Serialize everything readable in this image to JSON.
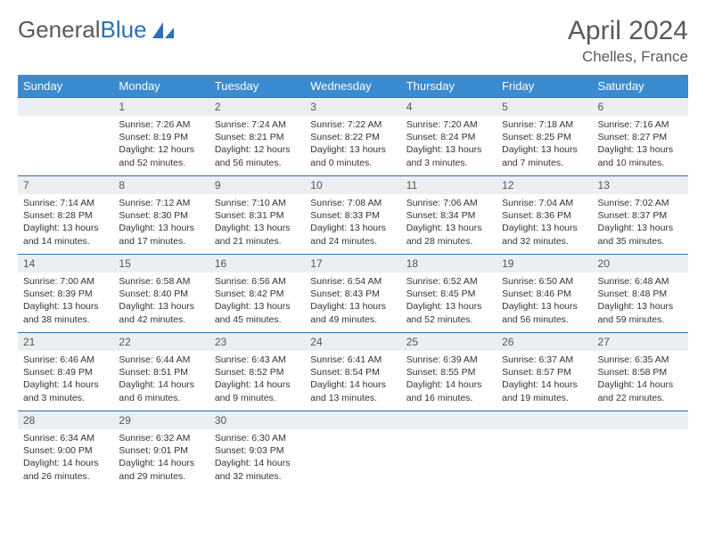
{
  "logo": {
    "text_a": "General",
    "text_b": "Blue"
  },
  "title": "April 2024",
  "location": "Chelles, France",
  "colors": {
    "header_bg": "#3b8bd0",
    "border": "#2e6fb7",
    "daynum_bg": "#eceff1",
    "text": "#333333",
    "muted": "#5a5a5a"
  },
  "weekdays": [
    "Sunday",
    "Monday",
    "Tuesday",
    "Wednesday",
    "Thursday",
    "Friday",
    "Saturday"
  ],
  "weeks": [
    [
      null,
      {
        "n": "1",
        "sr": "Sunrise: 7:26 AM",
        "ss": "Sunset: 8:19 PM",
        "dl": "Daylight: 12 hours and 52 minutes."
      },
      {
        "n": "2",
        "sr": "Sunrise: 7:24 AM",
        "ss": "Sunset: 8:21 PM",
        "dl": "Daylight: 12 hours and 56 minutes."
      },
      {
        "n": "3",
        "sr": "Sunrise: 7:22 AM",
        "ss": "Sunset: 8:22 PM",
        "dl": "Daylight: 13 hours and 0 minutes."
      },
      {
        "n": "4",
        "sr": "Sunrise: 7:20 AM",
        "ss": "Sunset: 8:24 PM",
        "dl": "Daylight: 13 hours and 3 minutes."
      },
      {
        "n": "5",
        "sr": "Sunrise: 7:18 AM",
        "ss": "Sunset: 8:25 PM",
        "dl": "Daylight: 13 hours and 7 minutes."
      },
      {
        "n": "6",
        "sr": "Sunrise: 7:16 AM",
        "ss": "Sunset: 8:27 PM",
        "dl": "Daylight: 13 hours and 10 minutes."
      }
    ],
    [
      {
        "n": "7",
        "sr": "Sunrise: 7:14 AM",
        "ss": "Sunset: 8:28 PM",
        "dl": "Daylight: 13 hours and 14 minutes."
      },
      {
        "n": "8",
        "sr": "Sunrise: 7:12 AM",
        "ss": "Sunset: 8:30 PM",
        "dl": "Daylight: 13 hours and 17 minutes."
      },
      {
        "n": "9",
        "sr": "Sunrise: 7:10 AM",
        "ss": "Sunset: 8:31 PM",
        "dl": "Daylight: 13 hours and 21 minutes."
      },
      {
        "n": "10",
        "sr": "Sunrise: 7:08 AM",
        "ss": "Sunset: 8:33 PM",
        "dl": "Daylight: 13 hours and 24 minutes."
      },
      {
        "n": "11",
        "sr": "Sunrise: 7:06 AM",
        "ss": "Sunset: 8:34 PM",
        "dl": "Daylight: 13 hours and 28 minutes."
      },
      {
        "n": "12",
        "sr": "Sunrise: 7:04 AM",
        "ss": "Sunset: 8:36 PM",
        "dl": "Daylight: 13 hours and 32 minutes."
      },
      {
        "n": "13",
        "sr": "Sunrise: 7:02 AM",
        "ss": "Sunset: 8:37 PM",
        "dl": "Daylight: 13 hours and 35 minutes."
      }
    ],
    [
      {
        "n": "14",
        "sr": "Sunrise: 7:00 AM",
        "ss": "Sunset: 8:39 PM",
        "dl": "Daylight: 13 hours and 38 minutes."
      },
      {
        "n": "15",
        "sr": "Sunrise: 6:58 AM",
        "ss": "Sunset: 8:40 PM",
        "dl": "Daylight: 13 hours and 42 minutes."
      },
      {
        "n": "16",
        "sr": "Sunrise: 6:56 AM",
        "ss": "Sunset: 8:42 PM",
        "dl": "Daylight: 13 hours and 45 minutes."
      },
      {
        "n": "17",
        "sr": "Sunrise: 6:54 AM",
        "ss": "Sunset: 8:43 PM",
        "dl": "Daylight: 13 hours and 49 minutes."
      },
      {
        "n": "18",
        "sr": "Sunrise: 6:52 AM",
        "ss": "Sunset: 8:45 PM",
        "dl": "Daylight: 13 hours and 52 minutes."
      },
      {
        "n": "19",
        "sr": "Sunrise: 6:50 AM",
        "ss": "Sunset: 8:46 PM",
        "dl": "Daylight: 13 hours and 56 minutes."
      },
      {
        "n": "20",
        "sr": "Sunrise: 6:48 AM",
        "ss": "Sunset: 8:48 PM",
        "dl": "Daylight: 13 hours and 59 minutes."
      }
    ],
    [
      {
        "n": "21",
        "sr": "Sunrise: 6:46 AM",
        "ss": "Sunset: 8:49 PM",
        "dl": "Daylight: 14 hours and 3 minutes."
      },
      {
        "n": "22",
        "sr": "Sunrise: 6:44 AM",
        "ss": "Sunset: 8:51 PM",
        "dl": "Daylight: 14 hours and 6 minutes."
      },
      {
        "n": "23",
        "sr": "Sunrise: 6:43 AM",
        "ss": "Sunset: 8:52 PM",
        "dl": "Daylight: 14 hours and 9 minutes."
      },
      {
        "n": "24",
        "sr": "Sunrise: 6:41 AM",
        "ss": "Sunset: 8:54 PM",
        "dl": "Daylight: 14 hours and 13 minutes."
      },
      {
        "n": "25",
        "sr": "Sunrise: 6:39 AM",
        "ss": "Sunset: 8:55 PM",
        "dl": "Daylight: 14 hours and 16 minutes."
      },
      {
        "n": "26",
        "sr": "Sunrise: 6:37 AM",
        "ss": "Sunset: 8:57 PM",
        "dl": "Daylight: 14 hours and 19 minutes."
      },
      {
        "n": "27",
        "sr": "Sunrise: 6:35 AM",
        "ss": "Sunset: 8:58 PM",
        "dl": "Daylight: 14 hours and 22 minutes."
      }
    ],
    [
      {
        "n": "28",
        "sr": "Sunrise: 6:34 AM",
        "ss": "Sunset: 9:00 PM",
        "dl": "Daylight: 14 hours and 26 minutes."
      },
      {
        "n": "29",
        "sr": "Sunrise: 6:32 AM",
        "ss": "Sunset: 9:01 PM",
        "dl": "Daylight: 14 hours and 29 minutes."
      },
      {
        "n": "30",
        "sr": "Sunrise: 6:30 AM",
        "ss": "Sunset: 9:03 PM",
        "dl": "Daylight: 14 hours and 32 minutes."
      },
      null,
      null,
      null,
      null
    ]
  ]
}
